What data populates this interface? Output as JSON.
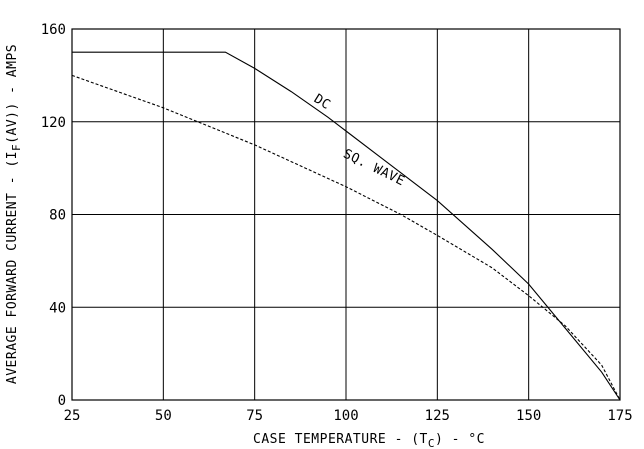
{
  "chart_data": {
    "type": "line",
    "xlabel": "CASE TEMPERATURE - (T",
    "xlabel_sub": "C",
    "xlabel_suffix": ") - °C",
    "ylabel": "AVERAGE FORWARD CURRENT - (I",
    "ylabel_sub": "F",
    "ylabel_suffix": "(AV)) - AMPS",
    "xlim": [
      25,
      175
    ],
    "ylim": [
      0,
      160
    ],
    "xticks": [
      25,
      50,
      75,
      100,
      125,
      150,
      175
    ],
    "yticks": [
      0,
      40,
      80,
      120,
      160
    ],
    "grid": true,
    "series": [
      {
        "name": "DC",
        "style": "solid",
        "x": [
          25,
          67,
          75,
          85,
          95,
          100,
          110,
          125,
          140,
          150,
          160,
          170,
          175
        ],
        "y": [
          150,
          150,
          143,
          133,
          122,
          116,
          104,
          86,
          65,
          50,
          31,
          12,
          0
        ]
      },
      {
        "name": "SQ. WAVE",
        "style": "dashed",
        "x": [
          25,
          50,
          75,
          100,
          115,
          125,
          140,
          150,
          160,
          170,
          175
        ],
        "y": [
          140,
          126,
          110,
          92,
          80,
          71,
          57,
          45,
          32,
          15,
          0
        ]
      }
    ],
    "annotations": [
      {
        "text": "DC",
        "x": 91,
        "y": 129,
        "angle": 32
      },
      {
        "text": "SQ. WAVE",
        "x": 99,
        "y": 105,
        "angle": 26
      }
    ]
  }
}
